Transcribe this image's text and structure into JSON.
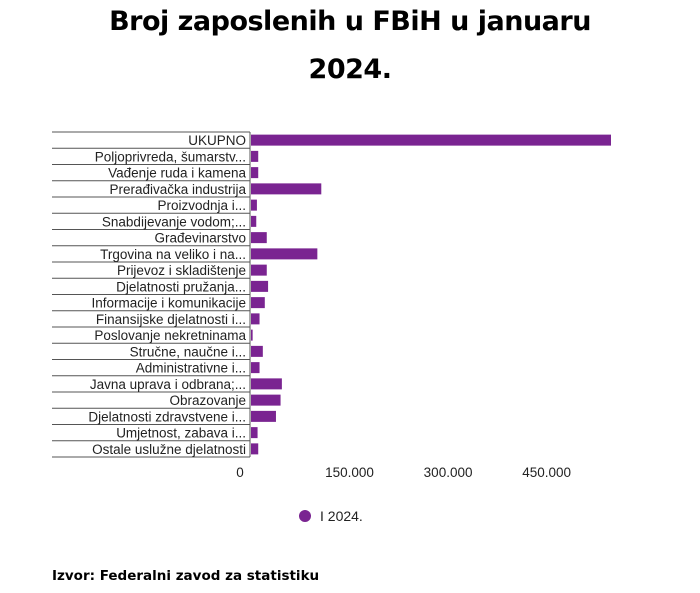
{
  "title_line1": "Broj zaposlenih u FBiH u januaru",
  "title_line2": "2024.",
  "chart_data": {
    "type": "bar",
    "orientation": "horizontal",
    "title": "Broj zaposlenih u FBiH u januaru 2024.",
    "categories": [
      "UKUPNO",
      "Poljoprivreda, šumarstv...",
      "Vađenje ruda i kamena",
      "Prerađivačka industrija",
      "Proizvodnja i...",
      "Snabdijevanje vodom;...",
      "Građevinarstvo",
      "Trgovina na veliko i na...",
      "Prijevoz i skladištenje",
      "Djelatnosti pružanja...",
      "Informacije i komunikacije",
      "Finansijske djelatnosti i...",
      "Poslovanje nekretninama",
      "Stručne, naučne i...",
      "Administrativne i...",
      "Javna uprava i odbrana;...",
      "Obrazovanje",
      "Djelatnosti zdravstvene i...",
      "Umjetnost, zabava i...",
      "Ostale uslužne djelatnosti"
    ],
    "series": [
      {
        "name": "I 2024.",
        "color": "#7a2491",
        "values": [
          548000,
          11000,
          11000,
          107000,
          9000,
          8000,
          24000,
          101000,
          24000,
          26000,
          21000,
          13000,
          2500,
          18000,
          13000,
          47000,
          45000,
          38000,
          10000,
          11000
        ]
      }
    ],
    "xlim": [
      0,
      600000
    ],
    "xticks": [
      0,
      150000,
      300000,
      450000
    ],
    "xtick_labels": [
      "0",
      "150.000",
      "300.000",
      "450.000"
    ],
    "legend_position": "bottom",
    "grid": false
  },
  "legend": {
    "label": "I 2024.",
    "color": "#7a2491"
  },
  "source": "Izvor: Federalni zavod za statistiku"
}
